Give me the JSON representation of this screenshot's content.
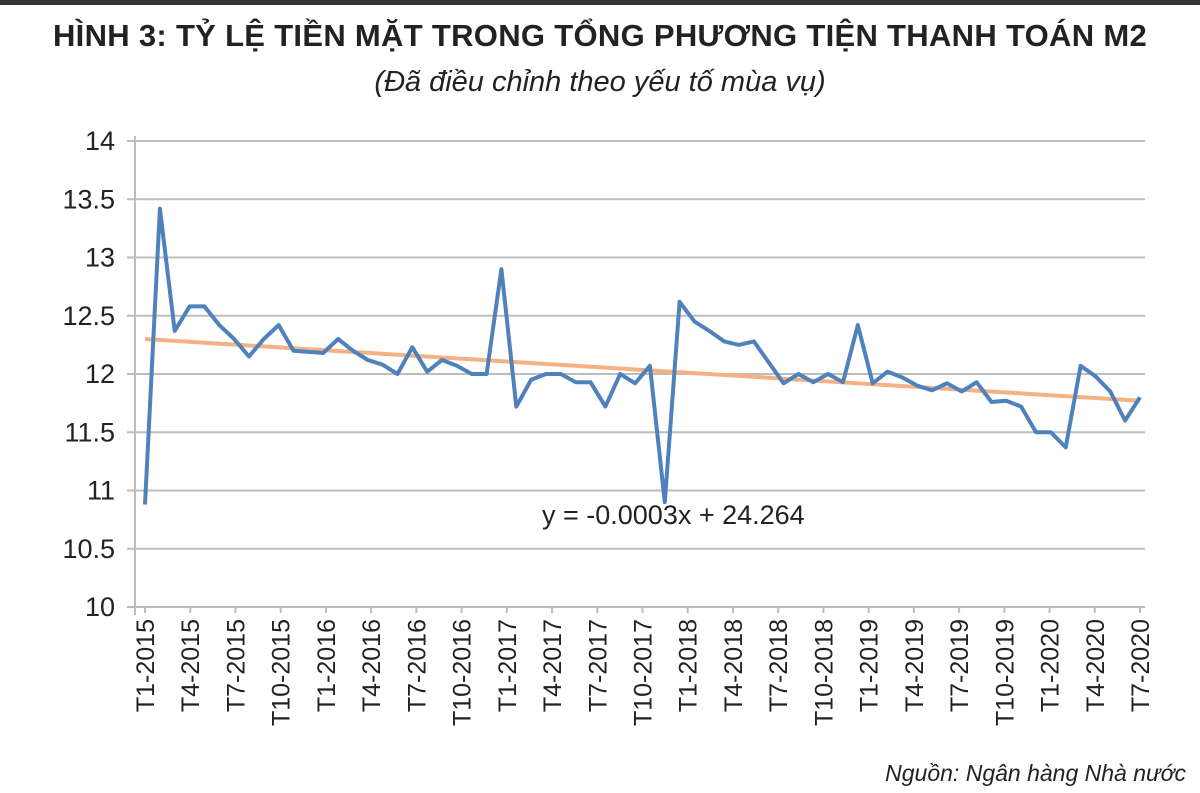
{
  "chart_data": {
    "type": "line",
    "title": "HÌNH 3: TỶ LỆ TIỀN MẶT TRONG TỔNG PHƯƠNG TIỆN THANH TOÁN M2",
    "subtitle": "(Đã điều chỉnh theo yếu tố mùa vụ)",
    "source": "Nguồn: Ngân hàng Nhà nước",
    "xlabel": "",
    "ylabel": "",
    "ylim": [
      10,
      14
    ],
    "yticks": [
      "10",
      "10.5",
      "11",
      "11.5",
      "12",
      "12.5",
      "13",
      "13.5",
      "14"
    ],
    "xticks": [
      "T1-2015",
      "T4-2015",
      "T7-2015",
      "T10-2015",
      "T1-2016",
      "T4-2016",
      "T7-2016",
      "T10-2016",
      "T1-2017",
      "T4-2017",
      "T7-2017",
      "T10-2017",
      "T1-2018",
      "T4-2018",
      "T7-2018",
      "T10-2018",
      "T1-2019",
      "T4-2019",
      "T7-2019",
      "T10-2019",
      "T1-2020",
      "T4-2020",
      "T7-2020"
    ],
    "grid": "horizontal",
    "series": [
      {
        "color": "#4f81bd",
        "values": [
          10.88,
          13.42,
          12.37,
          12.58,
          12.58,
          12.42,
          12.3,
          12.15,
          12.3,
          12.42,
          12.2,
          12.19,
          12.18,
          12.3,
          12.2,
          12.12,
          12.08,
          12.0,
          12.23,
          12.02,
          12.12,
          12.07,
          12.0,
          12.0,
          12.9,
          11.72,
          11.95,
          12.0,
          12.0,
          11.93,
          11.93,
          11.72,
          12.0,
          11.92,
          12.07,
          10.9,
          12.62,
          12.45,
          12.37,
          12.28,
          12.25,
          12.28,
          12.1,
          11.92,
          12.0,
          11.93,
          12.0,
          11.93,
          12.42,
          11.92,
          12.02,
          11.97,
          11.9,
          11.86,
          11.92,
          11.85,
          11.93,
          11.76,
          11.77,
          11.72,
          11.5,
          11.5,
          11.37,
          12.07,
          11.98,
          11.85,
          11.6,
          11.8
        ]
      }
    ],
    "trendline": {
      "color": "#f4b183",
      "equation": "y = -0.0003x + 24.264",
      "start_value": 12.3,
      "end_value": 11.77
    }
  }
}
